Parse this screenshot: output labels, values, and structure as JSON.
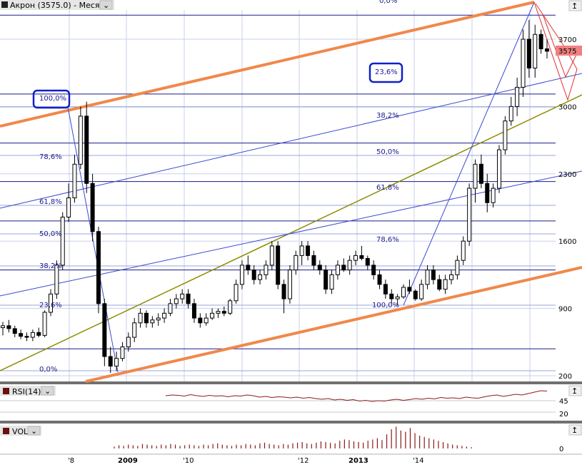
{
  "header": {
    "title": "Акрон (3575.0) - Месяц"
  },
  "panels": {
    "rsi": {
      "label": "RSI(14)",
      "levels": [
        "45",
        "20"
      ]
    },
    "vol": {
      "label": "VOL",
      "zero": "0"
    }
  },
  "colors": {
    "up_candle": "#ffffff",
    "down_candle": "#000000",
    "channel": "#f0884a",
    "olive_line": "#8c8c00",
    "fib_line": "#1a1a8c",
    "price_marker": "#f08080"
  },
  "chart_data": {
    "type": "candlestick",
    "title": "Акрон (3575.0) - Месяц",
    "current_price": "3575",
    "x_tick_labels": [
      "'8",
      "2009",
      "'10",
      "'12",
      "2013",
      "'14"
    ],
    "y_tick_labels": [
      "3700",
      "3000",
      "2300",
      "1600",
      "900",
      "200"
    ],
    "ylim": [
      200,
      4000
    ],
    "fib_left_labels": [
      "100,0%",
      "78,6%",
      "61,8%",
      "50,0%",
      "38,2%",
      "23,6%",
      "0,0%"
    ],
    "fib_right_labels": [
      "0,0%",
      "23,6%",
      "38,2%",
      "50,0%",
      "61,8%",
      "78,6%",
      "100,0%"
    ],
    "fib_right_levels": [
      3950,
      3130,
      2620,
      2220,
      1810,
      1300,
      480
    ],
    "candles": [
      [
        700,
        760,
        620,
        720
      ],
      [
        720,
        780,
        650,
        690
      ],
      [
        690,
        720,
        600,
        640
      ],
      [
        640,
        680,
        580,
        610
      ],
      [
        610,
        650,
        560,
        600
      ],
      [
        600,
        680,
        560,
        650
      ],
      [
        650,
        700,
        600,
        620
      ],
      [
        620,
        880,
        600,
        860
      ],
      [
        860,
        1100,
        820,
        1050
      ],
      [
        1050,
        1400,
        1000,
        1350
      ],
      [
        1350,
        1900,
        1300,
        1850
      ],
      [
        1850,
        2200,
        1800,
        2050
      ],
      [
        2050,
        2500,
        2000,
        2400
      ],
      [
        2400,
        3000,
        2350,
        2900
      ],
      [
        2900,
        3050,
        2100,
        2200
      ],
      [
        2200,
        2300,
        1600,
        1700
      ],
      [
        1700,
        1750,
        850,
        950
      ],
      [
        950,
        1000,
        300,
        400
      ],
      [
        400,
        500,
        230,
        300
      ],
      [
        300,
        450,
        250,
        380
      ],
      [
        380,
        550,
        350,
        500
      ],
      [
        500,
        650,
        450,
        600
      ],
      [
        600,
        800,
        550,
        750
      ],
      [
        750,
        900,
        700,
        850
      ],
      [
        850,
        880,
        700,
        750
      ],
      [
        750,
        820,
        700,
        780
      ],
      [
        780,
        850,
        720,
        800
      ],
      [
        800,
        900,
        750,
        850
      ],
      [
        850,
        1000,
        820,
        950
      ],
      [
        950,
        1050,
        900,
        1000
      ],
      [
        1000,
        1100,
        950,
        1050
      ],
      [
        1050,
        1100,
        900,
        950
      ],
      [
        950,
        1000,
        750,
        800
      ],
      [
        800,
        850,
        700,
        750
      ],
      [
        750,
        850,
        720,
        800
      ],
      [
        800,
        900,
        780,
        850
      ],
      [
        850,
        900,
        800,
        870
      ],
      [
        870,
        920,
        820,
        850
      ],
      [
        850,
        1000,
        830,
        980
      ],
      [
        980,
        1200,
        950,
        1150
      ],
      [
        1150,
        1400,
        1100,
        1350
      ],
      [
        1350,
        1450,
        1250,
        1300
      ],
      [
        1300,
        1350,
        1150,
        1200
      ],
      [
        1200,
        1300,
        1150,
        1250
      ],
      [
        1250,
        1400,
        1200,
        1350
      ],
      [
        1350,
        1600,
        1300,
        1550
      ],
      [
        1550,
        1600,
        1100,
        1150
      ],
      [
        1150,
        1200,
        850,
        1000
      ],
      [
        1000,
        1350,
        950,
        1300
      ],
      [
        1300,
        1500,
        1250,
        1450
      ],
      [
        1450,
        1600,
        1350,
        1550
      ],
      [
        1550,
        1600,
        1400,
        1450
      ],
      [
        1450,
        1500,
        1300,
        1350
      ],
      [
        1350,
        1400,
        1250,
        1300
      ],
      [
        1300,
        1350,
        1050,
        1100
      ],
      [
        1100,
        1300,
        1050,
        1250
      ],
      [
        1250,
        1400,
        1200,
        1350
      ],
      [
        1350,
        1420,
        1280,
        1300
      ],
      [
        1300,
        1450,
        1250,
        1400
      ],
      [
        1400,
        1500,
        1350,
        1450
      ],
      [
        1450,
        1550,
        1400,
        1420
      ],
      [
        1420,
        1450,
        1300,
        1350
      ],
      [
        1350,
        1400,
        1200,
        1250
      ],
      [
        1250,
        1300,
        1100,
        1150
      ],
      [
        1150,
        1200,
        1000,
        1050
      ],
      [
        1050,
        1100,
        950,
        1000
      ],
      [
        1000,
        1050,
        930,
        1020
      ],
      [
        1020,
        1150,
        1000,
        1120
      ],
      [
        1120,
        1200,
        1050,
        1080
      ],
      [
        1080,
        1100,
        980,
        1000
      ],
      [
        1000,
        1200,
        980,
        1150
      ],
      [
        1150,
        1350,
        1100,
        1300
      ],
      [
        1300,
        1350,
        1150,
        1200
      ],
      [
        1200,
        1250,
        1080,
        1100
      ],
      [
        1100,
        1250,
        1050,
        1200
      ],
      [
        1200,
        1300,
        1150,
        1250
      ],
      [
        1250,
        1450,
        1200,
        1400
      ],
      [
        1400,
        1650,
        1350,
        1600
      ],
      [
        1600,
        2200,
        1550,
        2150
      ],
      [
        2150,
        2450,
        2000,
        2400
      ],
      [
        2400,
        2500,
        2150,
        2200
      ],
      [
        2200,
        2300,
        1900,
        2000
      ],
      [
        2000,
        2200,
        1950,
        2150
      ],
      [
        2150,
        2600,
        2100,
        2550
      ],
      [
        2550,
        2900,
        2500,
        2850
      ],
      [
        2850,
        3100,
        2800,
        3000
      ],
      [
        3000,
        3300,
        2900,
        3200
      ],
      [
        3200,
        3800,
        3100,
        3700
      ],
      [
        3700,
        3900,
        3300,
        3400
      ],
      [
        3400,
        3850,
        3300,
        3750
      ],
      [
        3750,
        3800,
        3550,
        3600
      ],
      [
        3600,
        3700,
        3500,
        3575
      ]
    ],
    "rsi": [
      70,
      72,
      71,
      69,
      73,
      70,
      68,
      71,
      69,
      70,
      67,
      70,
      69,
      72,
      70,
      66,
      68,
      65,
      67,
      66,
      64,
      66,
      63,
      65,
      62,
      60,
      62,
      58,
      60,
      57,
      59,
      55,
      57,
      54,
      56,
      55,
      58,
      60,
      57,
      59,
      62,
      60,
      63,
      61,
      65,
      63,
      64,
      62,
      66,
      64,
      63,
      67,
      70,
      72,
      68,
      71,
      74,
      72,
      76,
      80,
      84,
      83
    ],
    "volume": [
      3,
      5,
      4,
      6,
      5,
      4,
      7,
      6,
      5,
      4,
      6,
      5,
      7,
      6,
      4,
      5,
      6,
      5,
      4,
      6,
      5,
      7,
      8,
      6,
      5,
      4,
      6,
      5,
      7,
      6,
      5,
      8,
      9,
      7,
      6,
      5,
      7,
      6,
      8,
      9,
      10,
      8,
      7,
      9,
      11,
      10,
      9,
      8,
      12,
      14,
      13,
      11,
      10,
      9,
      12,
      14,
      16,
      13,
      22,
      30,
      34,
      28,
      26,
      32,
      24,
      20,
      18,
      16,
      14,
      12,
      10,
      8,
      6,
      5,
      4,
      3,
      2
    ]
  }
}
